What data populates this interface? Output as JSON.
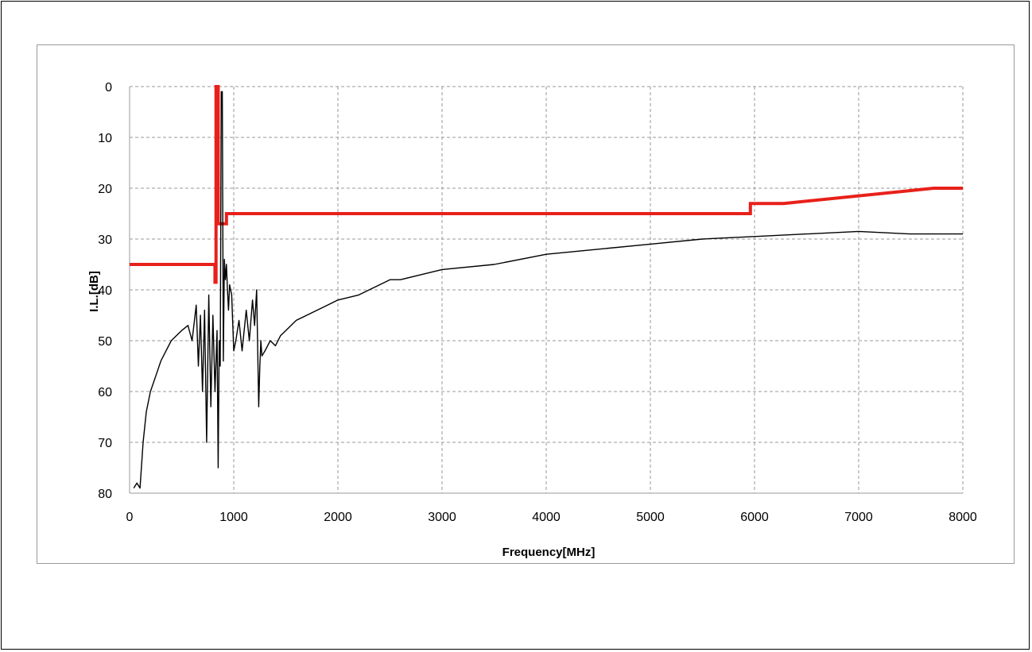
{
  "chart_data": {
    "type": "line",
    "title": "",
    "xlabel": "Frequency[MHz]",
    "ylabel": "I.L.[dB]",
    "xlim": [
      0,
      8000
    ],
    "ylim": [
      0,
      80
    ],
    "y_inverted": true,
    "grid": true,
    "x_ticks": [
      "0",
      "1000",
      "2000",
      "3000",
      "4000",
      "5000",
      "6000",
      "7000",
      "8000"
    ],
    "y_ticks": [
      "0",
      "10",
      "20",
      "30",
      "40",
      "50",
      "60",
      "70",
      "80"
    ],
    "colors": {
      "measured": "#000000",
      "spec": "#e8201a",
      "grid": "#9a9a9a"
    },
    "series": [
      {
        "style": "measured-curve",
        "x": [
          40,
          70,
          100,
          130,
          160,
          200,
          250,
          300,
          350,
          400,
          450,
          500,
          560,
          600,
          640,
          660,
          680,
          700,
          720,
          740,
          760,
          780,
          800,
          820,
          840,
          850,
          860,
          870,
          880,
          890,
          900,
          910,
          920,
          930,
          940,
          950,
          960,
          980,
          1000,
          1020,
          1050,
          1080,
          1100,
          1120,
          1150,
          1180,
          1200,
          1220,
          1240,
          1250,
          1260,
          1270,
          1300,
          1350,
          1400,
          1450,
          1500,
          1600,
          1700,
          1800,
          1900,
          2000,
          2200,
          2400,
          2500,
          2600,
          2800,
          3000,
          3500,
          4000,
          4500,
          5000,
          5500,
          6000,
          6500,
          7000,
          7500,
          8000
        ],
        "y": [
          79,
          78,
          79,
          70,
          64,
          60,
          57,
          54,
          52,
          50,
          49,
          48,
          47,
          50,
          43,
          55,
          45,
          60,
          44,
          70,
          41,
          63,
          45,
          60,
          48,
          75,
          50,
          55,
          1,
          1,
          54,
          34,
          38,
          35,
          40,
          44,
          39,
          41,
          52,
          50,
          46,
          52,
          48,
          44,
          50,
          42,
          47,
          40,
          63,
          55,
          50,
          53,
          52,
          50,
          51,
          49,
          48,
          46,
          45,
          44,
          43,
          42,
          41,
          39,
          38,
          38,
          37,
          36,
          35,
          33,
          32,
          31,
          30,
          29.5,
          29,
          28.5,
          29,
          29
        ]
      },
      {
        "style": "spec-mask",
        "x": [
          0,
          820,
          820,
          830,
          830,
          850,
          850,
          930,
          930,
          980,
          980,
          5960,
          5960,
          6280,
          7720,
          8000
        ],
        "y": [
          35,
          35,
          38.5,
          38.5,
          0,
          0,
          27,
          27,
          25,
          25,
          25,
          25,
          23,
          23,
          20,
          20
        ]
      }
    ]
  }
}
